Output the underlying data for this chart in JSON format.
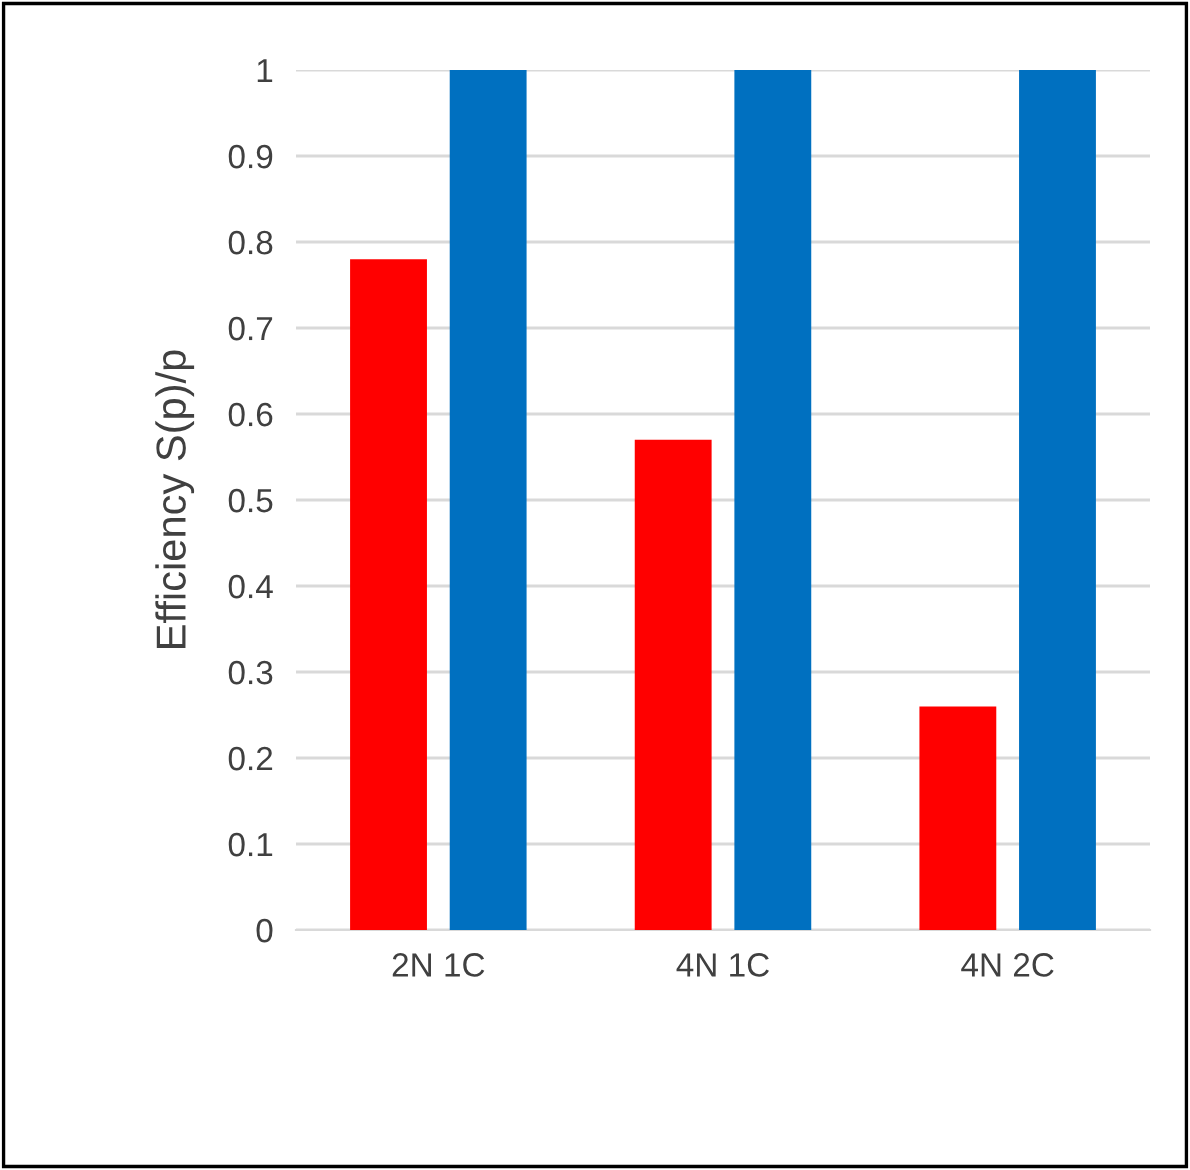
{
  "chart_data": {
    "type": "bar",
    "ylabel": "Efficiency S(p)/p",
    "categories": [
      "2N 1C",
      "4N 1C",
      "4N 2C"
    ],
    "series": [
      {
        "color": "#ff0000",
        "values": [
          0.78,
          0.57,
          0.26
        ]
      },
      {
        "color": "#0070c0",
        "values": [
          1.0,
          1.0,
          1.0
        ]
      }
    ],
    "ylim": [
      0,
      1
    ],
    "yticks": [
      0,
      0.1,
      0.2,
      0.3,
      0.4,
      0.5,
      0.6,
      0.7,
      0.8,
      0.9,
      1
    ],
    "grid": "y"
  }
}
